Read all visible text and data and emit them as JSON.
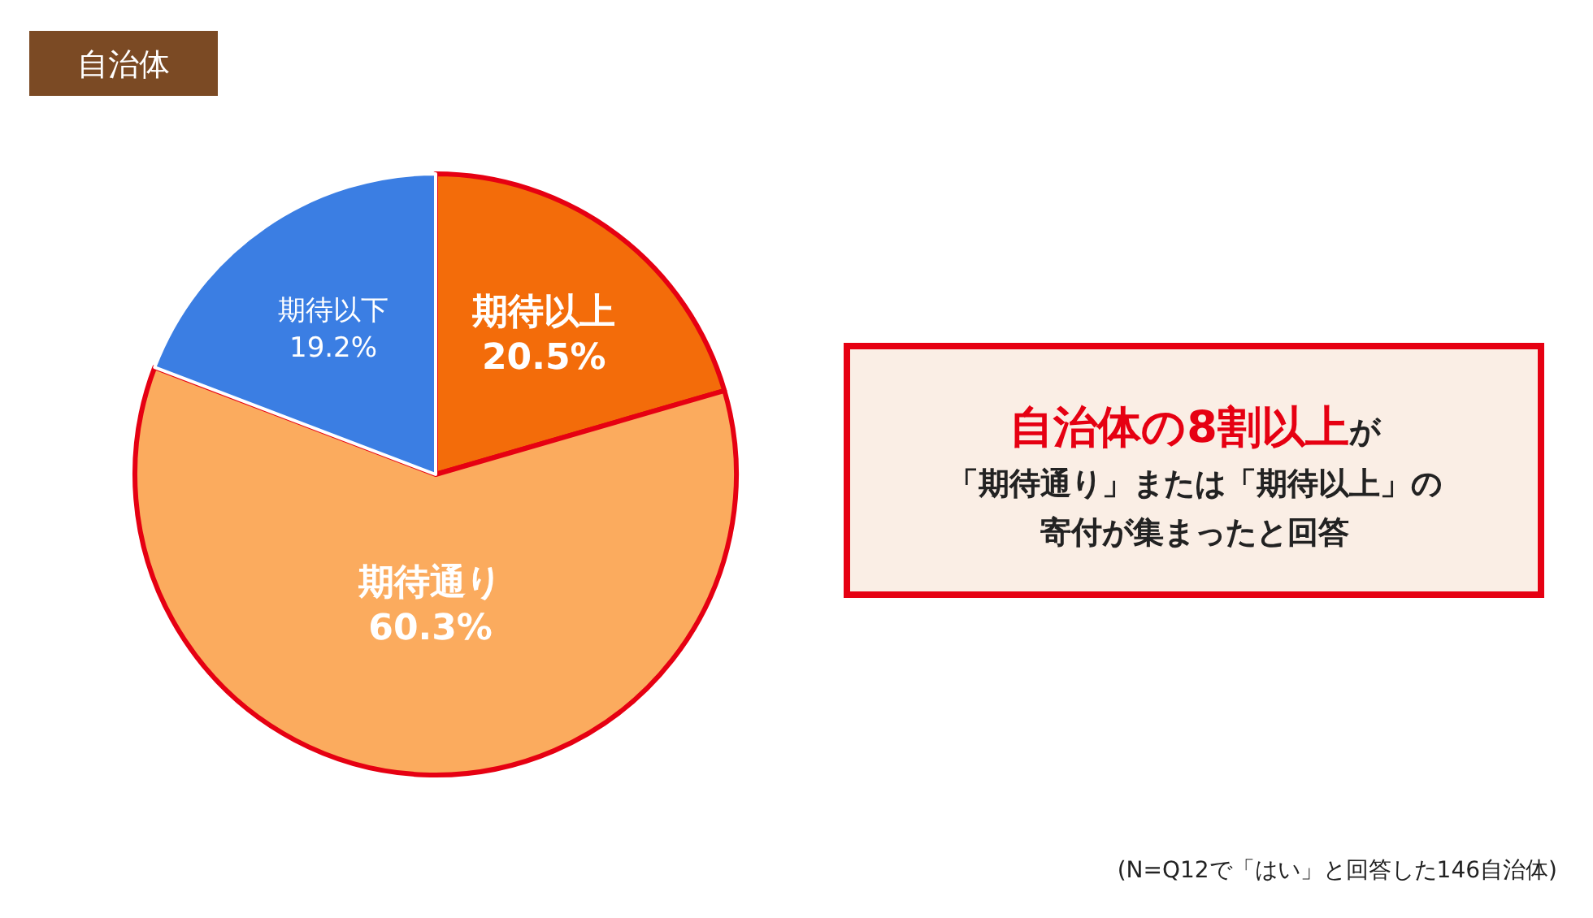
{
  "chart_data": {
    "type": "pie",
    "title": "自治体",
    "categories": [
      "期待以上",
      "期待通り",
      "期待以下"
    ],
    "values": [
      20.5,
      60.3,
      19.2
    ],
    "colors": [
      "#f36c0a",
      "#fbab5e",
      "#3b7ee3"
    ],
    "value_labels": [
      "20.5%",
      "60.3%",
      "19.2%"
    ],
    "annotations": [
      "自治体の8割以上",
      "が",
      "「期待通り」または「期待以上」の",
      "寄付が集まったと回答",
      "(N=Q12で「はい」と回答した146自治体)"
    ]
  }
}
